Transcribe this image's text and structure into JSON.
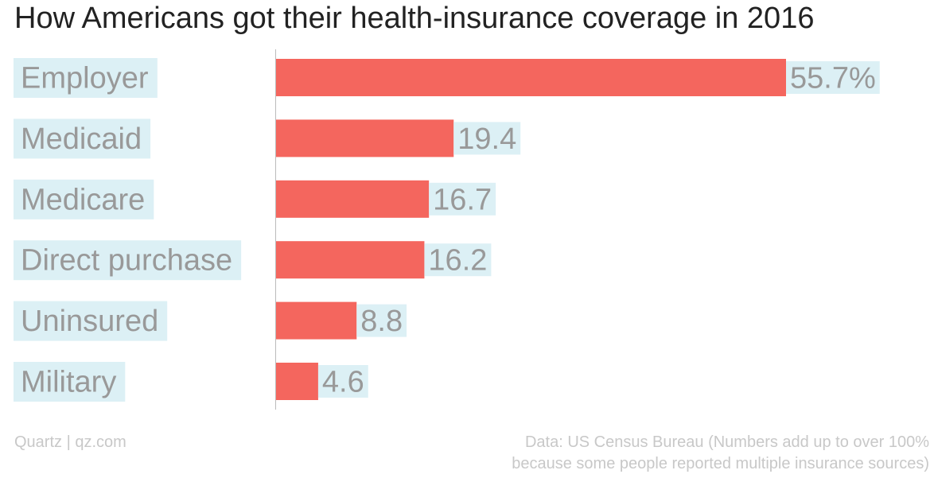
{
  "chart_data": {
    "type": "bar",
    "orientation": "horizontal",
    "title": "How Americans got their health-insurance coverage in 2016",
    "categories": [
      "Employer",
      "Medicaid",
      "Medicare",
      "Direct purchase",
      "Uninsured",
      "Military"
    ],
    "values": [
      55.7,
      19.4,
      16.7,
      16.2,
      8.8,
      4.6
    ],
    "value_labels": [
      "55.7%",
      "19.4",
      "16.7",
      "16.2",
      "8.8",
      "4.6"
    ],
    "xlim": [
      0,
      55.7
    ],
    "grid": false,
    "bar_color": "#f4665e",
    "label_highlight_color": "#dcf0f5",
    "label_text_color": "#999999"
  },
  "footer": {
    "source": "Quartz | qz.com",
    "note_line1": "Data: US Census Bureau (Numbers add up to over 100%",
    "note_line2": "because some people reported multiple insurance sources)"
  }
}
